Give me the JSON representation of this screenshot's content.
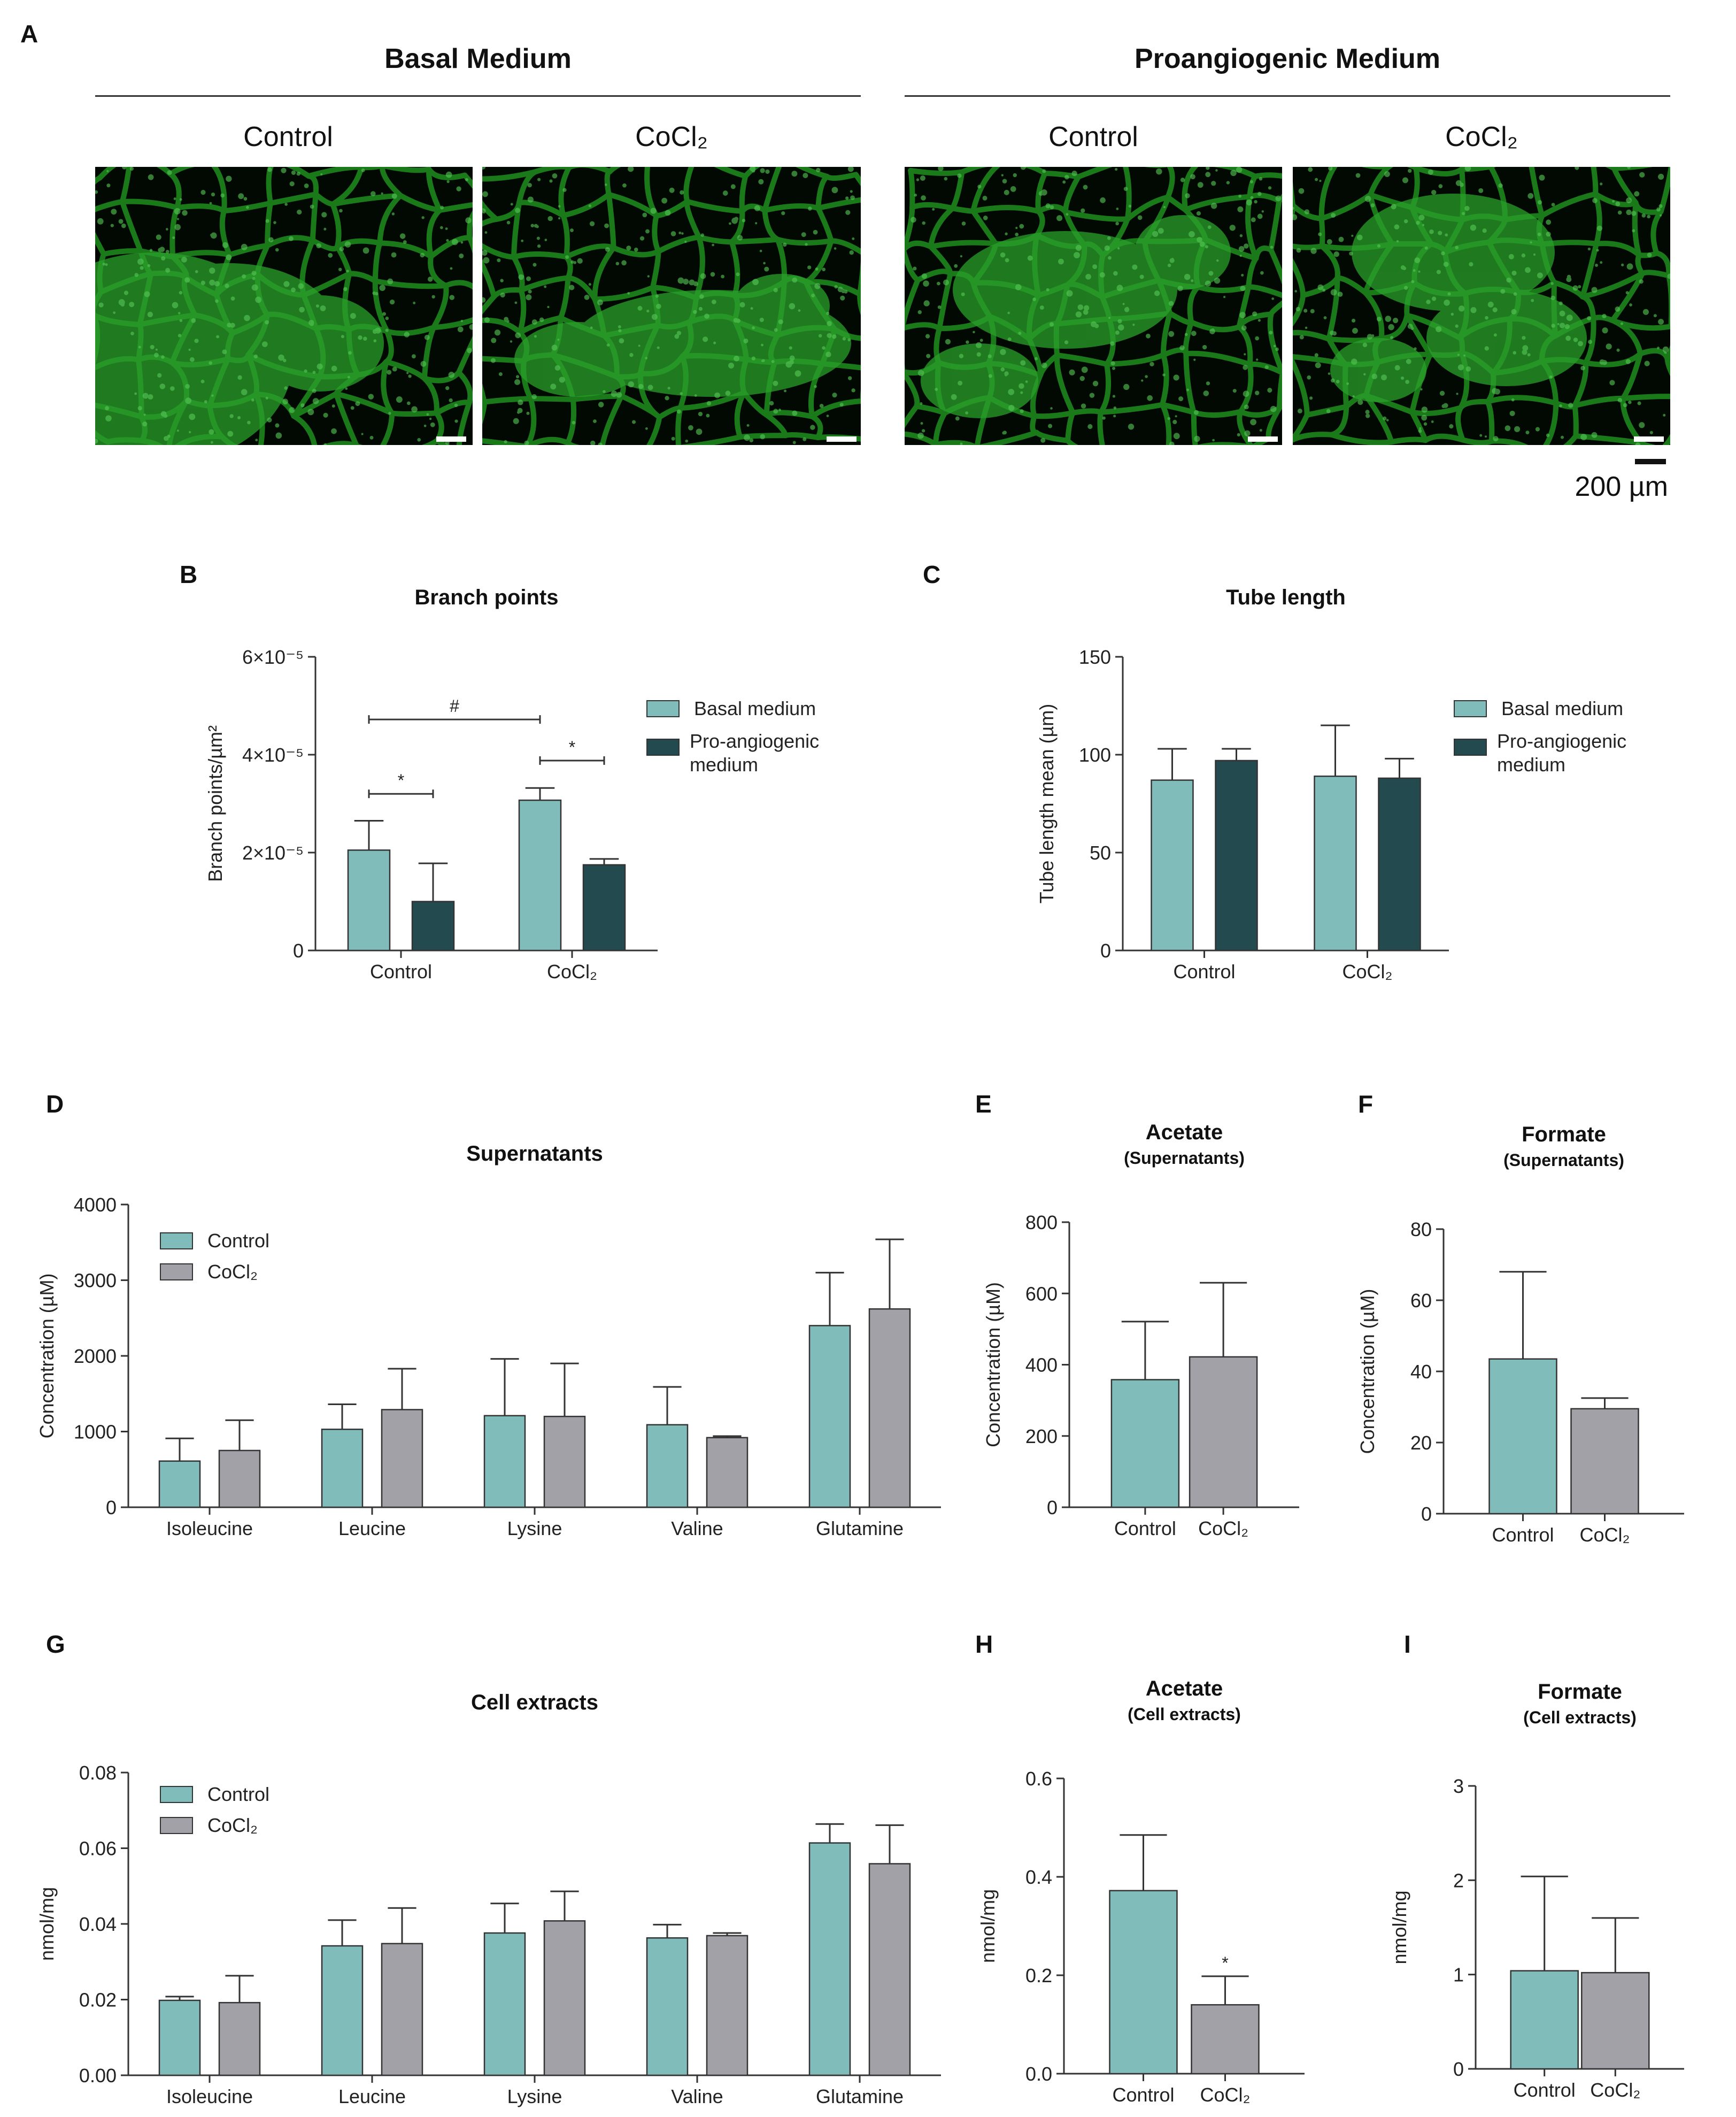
{
  "figure": {
    "panelA": {
      "letter": "A",
      "groups": [
        {
          "title": "Basal Medium",
          "conditions": [
            "Control",
            "CoCl₂"
          ]
        },
        {
          "title": "Proangiogenic Medium",
          "conditions": [
            "Control",
            "CoCl₂"
          ]
        }
      ],
      "scale_label": "200 µm"
    }
  },
  "chart_data": [
    {
      "id": "B",
      "letter": "B",
      "type": "bar",
      "title": "Branch points",
      "subtitle": "",
      "ylabel": "Branch points/µm²",
      "xlabel": "",
      "categories": [
        "Control",
        "CoCl₂"
      ],
      "ylim": [
        0,
        6e-05
      ],
      "yticks": [
        0,
        2e-05,
        4e-05,
        6e-05
      ],
      "yticklabels": [
        "0",
        "2×10⁻⁵",
        "4×10⁻⁵",
        "6×10⁻⁵"
      ],
      "series": [
        {
          "name": "Basal medium",
          "color": "#7fbcba",
          "values": [
            2.05e-05,
            3.07e-05
          ],
          "errors": [
            6e-06,
            2.5e-06
          ]
        },
        {
          "name": "Pro-angiogenic medium",
          "color": "#234a4e",
          "values": [
            1e-05,
            1.75e-05
          ],
          "errors": [
            7.8e-06,
            1.2e-06
          ]
        }
      ],
      "legend": {
        "position": "right",
        "labels": [
          "Basal medium",
          "Pro-angiogenic medium"
        ]
      },
      "annotations": [
        {
          "text": "*",
          "from": [
            0,
            0
          ],
          "to": [
            0,
            1
          ],
          "y": 3.2e-05
        },
        {
          "text": "#",
          "from": [
            0,
            0
          ],
          "to": [
            1,
            0
          ],
          "y": 4.72e-05
        },
        {
          "text": "*",
          "from": [
            1,
            0
          ],
          "to": [
            1,
            1
          ],
          "y": 3.88e-05
        }
      ]
    },
    {
      "id": "C",
      "letter": "C",
      "type": "bar",
      "title": "Tube length",
      "subtitle": "",
      "ylabel": "Tube length mean (µm)",
      "xlabel": "",
      "categories": [
        "Control",
        "CoCl₂"
      ],
      "ylim": [
        0,
        150
      ],
      "yticks": [
        0,
        50,
        100,
        150
      ],
      "yticklabels": [
        "0",
        "50",
        "100",
        "150"
      ],
      "series": [
        {
          "name": "Basal medium",
          "color": "#7fbcba",
          "values": [
            87,
            89
          ],
          "errors": [
            16,
            26
          ]
        },
        {
          "name": "Pro-angiogenic medium",
          "color": "#234a4e",
          "values": [
            97,
            88
          ],
          "errors": [
            6,
            10
          ]
        }
      ],
      "legend": {
        "position": "right",
        "labels": [
          "Basal medium",
          "Pro-angiogenic medium"
        ]
      },
      "annotations": []
    },
    {
      "id": "D",
      "letter": "D",
      "type": "bar",
      "title": "Supernatants",
      "subtitle": "",
      "ylabel": "Concentration (µM)",
      "xlabel": "",
      "categories": [
        "Isoleucine",
        "Leucine",
        "Lysine",
        "Valine",
        "Glutamine"
      ],
      "ylim": [
        0,
        4000
      ],
      "yticks": [
        0,
        1000,
        2000,
        3000,
        4000
      ],
      "yticklabels": [
        "0",
        "1000",
        "2000",
        "3000",
        "4000"
      ],
      "series": [
        {
          "name": "Control",
          "color": "#7fbcba",
          "values": [
            610,
            1030,
            1210,
            1090,
            2400
          ],
          "errors": [
            300,
            330,
            750,
            500,
            700
          ]
        },
        {
          "name": "CoCl₂",
          "color": "#a3a1a8",
          "values": [
            750,
            1290,
            1200,
            920,
            2620
          ],
          "errors": [
            400,
            540,
            700,
            20,
            920
          ]
        }
      ],
      "legend": {
        "position": "top-left",
        "labels": [
          "Control",
          "CoCl₂"
        ]
      },
      "annotations": []
    },
    {
      "id": "E",
      "letter": "E",
      "type": "bar",
      "title": "Acetate",
      "subtitle": "(Supernatants)",
      "ylabel": "Concentration (µM)",
      "xlabel": "",
      "categories": [
        "Control",
        "CoCl₂"
      ],
      "ylim": [
        0,
        800
      ],
      "yticks": [
        0,
        200,
        400,
        600,
        800
      ],
      "yticklabels": [
        "0",
        "200",
        "400",
        "600",
        "800"
      ],
      "series": [
        {
          "name": "",
          "colors": [
            "#7fbcba",
            "#a3a1a8"
          ],
          "values": [
            358,
            422
          ],
          "errors": [
            163,
            208
          ]
        }
      ],
      "annotations": []
    },
    {
      "id": "F",
      "letter": "F",
      "type": "bar",
      "title": "Formate",
      "subtitle": "(Supernatants)",
      "ylabel": "Concentration (µM)",
      "xlabel": "",
      "categories": [
        "Control",
        "CoCl₂"
      ],
      "ylim": [
        0,
        80
      ],
      "yticks": [
        0,
        20,
        40,
        60,
        80
      ],
      "yticklabels": [
        "0",
        "20",
        "40",
        "60",
        "80"
      ],
      "series": [
        {
          "name": "",
          "colors": [
            "#7fbcba",
            "#a3a1a8"
          ],
          "values": [
            43.5,
            29.5
          ],
          "errors": [
            24.5,
            3
          ]
        }
      ],
      "annotations": []
    },
    {
      "id": "G",
      "letter": "G",
      "type": "bar",
      "title": "Cell extracts",
      "subtitle": "",
      "ylabel": "nmol/mg",
      "xlabel": "",
      "categories": [
        "Isoleucine",
        "Leucine",
        "Lysine",
        "Valine",
        "Glutamine"
      ],
      "ylim": [
        0,
        0.08
      ],
      "yticks": [
        0,
        0.02,
        0.04,
        0.06,
        0.08
      ],
      "yticklabels": [
        "0.00",
        "0.02",
        "0.04",
        "0.06",
        "0.08"
      ],
      "series": [
        {
          "name": "Control",
          "color": "#7fbcba",
          "values": [
            0.0198,
            0.0342,
            0.0376,
            0.0363,
            0.0614
          ],
          "errors": [
            0.001,
            0.0068,
            0.0078,
            0.0035,
            0.005
          ]
        },
        {
          "name": "CoCl₂",
          "color": "#a3a1a8",
          "values": [
            0.0192,
            0.0348,
            0.0408,
            0.0369,
            0.0559
          ],
          "errors": [
            0.0071,
            0.0094,
            0.0078,
            0.0007,
            0.0102
          ]
        }
      ],
      "legend": {
        "position": "top-left",
        "labels": [
          "Control",
          "CoCl₂"
        ]
      },
      "annotations": []
    },
    {
      "id": "H",
      "letter": "H",
      "type": "bar",
      "title": "Acetate",
      "subtitle": "(Cell extracts)",
      "ylabel": "nmol/mg",
      "xlabel": "",
      "categories": [
        "Control",
        "CoCl₂"
      ],
      "ylim": [
        0,
        0.6
      ],
      "yticks": [
        0,
        0.2,
        0.4,
        0.6
      ],
      "yticklabels": [
        "0.0",
        "0.2",
        "0.4",
        "0.6"
      ],
      "series": [
        {
          "name": "",
          "colors": [
            "#7fbcba",
            "#a3a1a8"
          ],
          "values": [
            0.372,
            0.14
          ],
          "errors": [
            0.113,
            0.058
          ]
        }
      ],
      "annotations": [
        {
          "text": "*",
          "bar": 1
        }
      ]
    },
    {
      "id": "I",
      "letter": "I",
      "type": "bar",
      "title": "Formate",
      "subtitle": "(Cell extracts)",
      "ylabel": "nmol/mg",
      "xlabel": "",
      "categories": [
        "Control",
        "CoCl₂"
      ],
      "ylim": [
        0,
        3
      ],
      "yticks": [
        0,
        1,
        2,
        3
      ],
      "yticklabels": [
        "0",
        "1",
        "2",
        "3"
      ],
      "series": [
        {
          "name": "",
          "colors": [
            "#7fbcba",
            "#a3a1a8"
          ],
          "values": [
            1.04,
            1.02
          ],
          "errors": [
            1.0,
            0.58
          ]
        }
      ],
      "annotations": []
    }
  ]
}
